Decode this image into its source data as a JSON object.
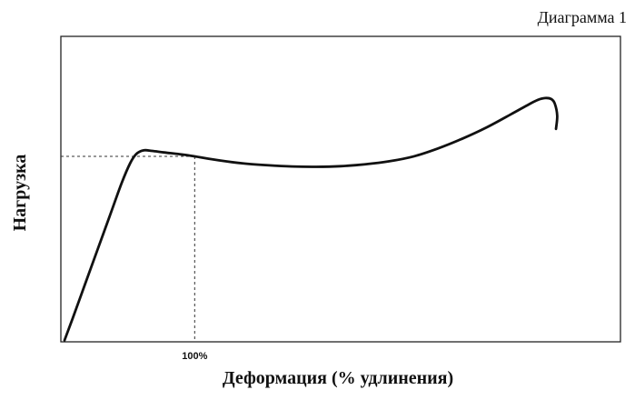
{
  "chart_data": {
    "type": "line",
    "caption": "Диаграмма 1",
    "title": "",
    "xlabel": "Деформация (% удлинения)",
    "ylabel": "Нагрузка",
    "x_ticks": [
      {
        "value": 100,
        "label": "100%"
      }
    ],
    "xlim": [
      -10,
      450
    ],
    "ylim": [
      0,
      100
    ],
    "grid": false,
    "line_color": "#111111",
    "reference_lines": {
      "yield_load": 60.7,
      "yield_strain": 100
    },
    "series": [
      {
        "points": [
          [
            -7,
            0.5
          ],
          [
            0,
            8
          ],
          [
            10,
            19
          ],
          [
            20,
            30
          ],
          [
            30,
            41
          ],
          [
            40,
            52
          ],
          [
            47,
            58.5
          ],
          [
            52,
            61.5
          ],
          [
            58,
            62.7
          ],
          [
            65,
            62.5
          ],
          [
            75,
            62
          ],
          [
            90,
            61.3
          ],
          [
            100,
            60.7
          ],
          [
            120,
            59.4
          ],
          [
            140,
            58.4
          ],
          [
            160,
            57.8
          ],
          [
            180,
            57.4
          ],
          [
            200,
            57.3
          ],
          [
            220,
            57.5
          ],
          [
            240,
            58.1
          ],
          [
            260,
            59.1
          ],
          [
            280,
            60.7
          ],
          [
            300,
            63.3
          ],
          [
            320,
            66.5
          ],
          [
            340,
            70.2
          ],
          [
            360,
            74.5
          ],
          [
            375,
            77.8
          ],
          [
            382,
            79.2
          ],
          [
            388,
            79.8
          ],
          [
            393,
            79.5
          ],
          [
            396,
            78
          ],
          [
            398,
            74
          ],
          [
            397,
            69.7
          ]
        ]
      }
    ]
  }
}
